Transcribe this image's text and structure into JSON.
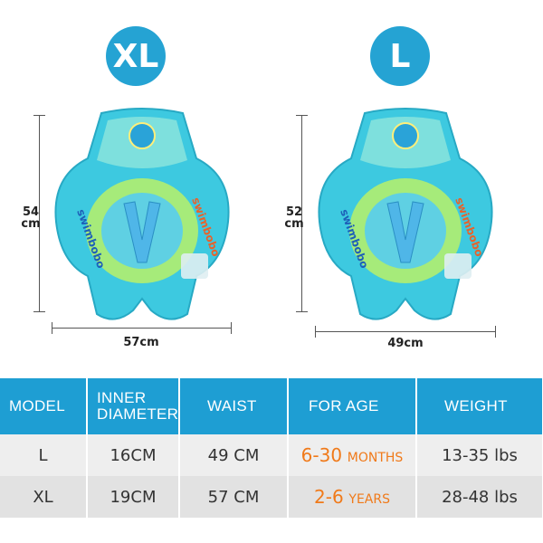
{
  "products": [
    {
      "size": "XL",
      "height": "54",
      "height_unit": "cm",
      "width": "57cm"
    },
    {
      "size": "L",
      "height": "52",
      "height_unit": "cm",
      "width": "49cm"
    }
  ],
  "brand_text": "swimbobo",
  "colors": {
    "badge": "#25a3d3",
    "header": "#1e9ed3",
    "age": "#f07a1a",
    "float_main": "#3dc9e0",
    "float_light": "#8fe6ec",
    "float_accent": "#b6e85a"
  },
  "table": {
    "headers": [
      "MODEL",
      "INNER DIAMETER",
      "WAIST",
      "FOR AGE",
      "WEIGHT"
    ],
    "rows": [
      {
        "model": "L",
        "inner": "16CM",
        "waist": "49 CM",
        "age_num": "6-30",
        "age_unit": "MONTHS",
        "weight": "13-35 lbs"
      },
      {
        "model": "XL",
        "inner": "19CM",
        "waist": "57 CM",
        "age_num": "2-6",
        "age_unit": "YEARS",
        "weight": "28-48 lbs"
      }
    ]
  }
}
